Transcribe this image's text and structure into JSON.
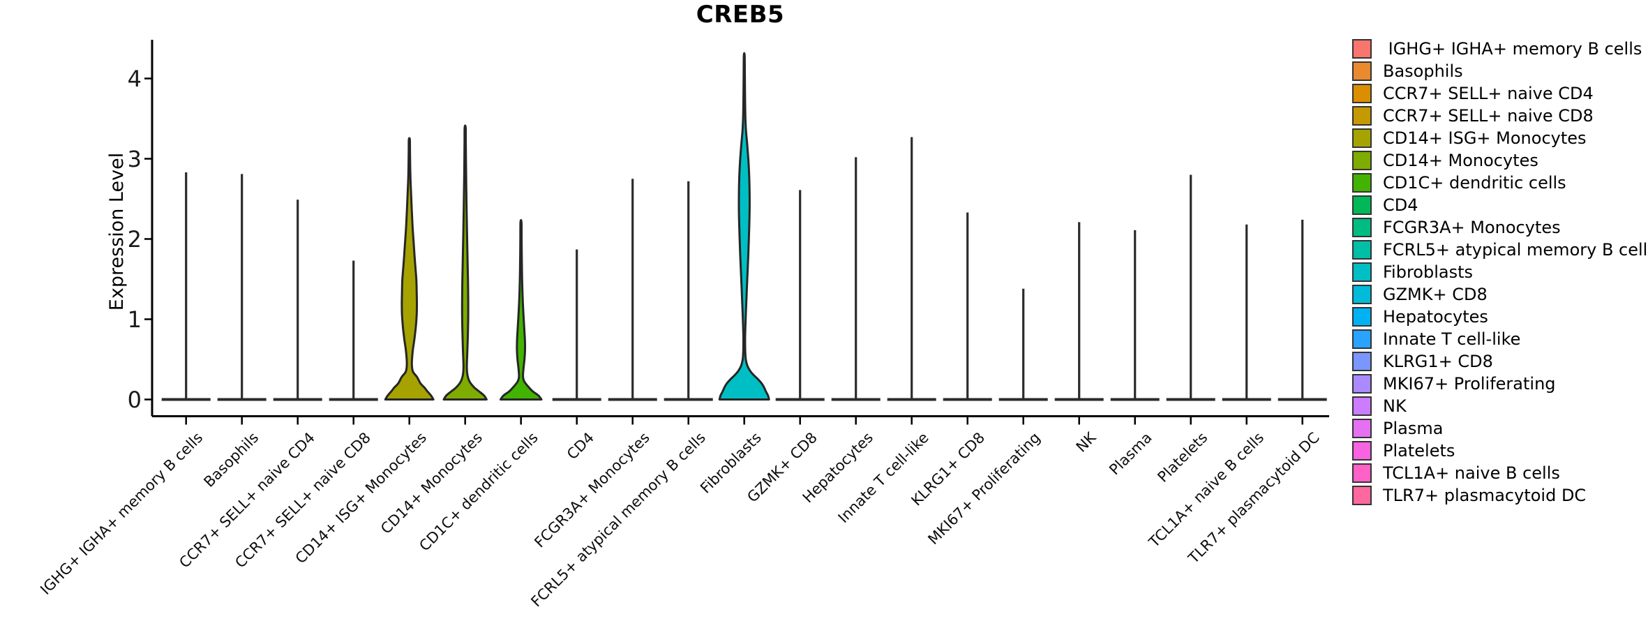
{
  "title": "CREB5",
  "y_axis": {
    "label": "Expression Level",
    "ticks": [
      0,
      1,
      2,
      3,
      4
    ]
  },
  "colors": {
    "axis": "#000000",
    "violin_outline": "#262626",
    "legend_swatch_border": "#333333",
    "background": "#ffffff"
  },
  "legend": {
    "items": [
      {
        "label": " IGHG+ IGHA+ memory B cells",
        "color": "#F8766D"
      },
      {
        "label": "Basophils",
        "color": "#E98A2F"
      },
      {
        "label": "CCR7+ SELL+ naive CD4",
        "color": "#DB8E00"
      },
      {
        "label": "CCR7+ SELL+ naive CD8",
        "color": "#C59900"
      },
      {
        "label": "CD14+ ISG+ Monocytes",
        "color": "#A6A300"
      },
      {
        "label": "CD14+ Monocytes",
        "color": "#7FAC00"
      },
      {
        "label": "CD1C+ dendritic cells",
        "color": "#42B300"
      },
      {
        "label": "CD4",
        "color": "#00B857"
      },
      {
        "label": "FCGR3A+ Monocytes",
        "color": "#00BC82"
      },
      {
        "label": "FCRL5+ atypical memory B cells",
        "color": "#00BFA6"
      },
      {
        "label": "Fibroblasts",
        "color": "#00BFC4"
      },
      {
        "label": "GZMK+ CD8",
        "color": "#00BBDA"
      },
      {
        "label": "Hepatocytes",
        "color": "#00B2F3"
      },
      {
        "label": "Innate T cell-like",
        "color": "#29A3FF"
      },
      {
        "label": "KLRG1+ CD8",
        "color": "#7A96FF"
      },
      {
        "label": "MKI67+ Proliferating",
        "color": "#A98AFF"
      },
      {
        "label": "NK",
        "color": "#CC7CFF"
      },
      {
        "label": "Plasma",
        "color": "#E570F2"
      },
      {
        "label": "Platelets",
        "color": "#F763E0"
      },
      {
        "label": "TCL1A+ naive B cells",
        "color": "#FF61C7"
      },
      {
        "label": "TLR7+ plasmacytoid DC",
        "color": "#FF689E"
      }
    ]
  },
  "chart_data": {
    "type": "violin",
    "title": "CREB5",
    "xlabel": "",
    "ylabel": "Expression Level",
    "ylim": [
      0,
      4.5
    ],
    "y_ticks": [
      0,
      1,
      2,
      3,
      4
    ],
    "legend_position": "right",
    "grid": false,
    "categories": [
      "IGHG+ IGHA+ memory B cells",
      "Basophils",
      "CCR7+ SELL+ naive CD4",
      "CCR7+ SELL+ naive CD8",
      "CD14+ ISG+ Monocytes",
      "CD14+ Monocytes",
      "CD1C+ dendritic cells",
      "CD4",
      "FCGR3A+ Monocytes",
      "FCRL5+ atypical memory B cells",
      "Fibroblasts",
      "GZMK+ CD8",
      "Hepatocytes",
      "Innate T cell-like",
      "KLRG1+ CD8",
      "MKI67+ Proliferating",
      "NK",
      "Plasma",
      "Platelets",
      "TCL1A+ naive B cells",
      "TLR7+ plasmacytoid DC"
    ],
    "series": [
      {
        "name": "IGHG+ IGHA+ memory B cells",
        "color": "#F8766D",
        "max_expression": 2.83,
        "profile": null
      },
      {
        "name": "Basophils",
        "color": "#E98A2F",
        "max_expression": 2.81,
        "profile": null
      },
      {
        "name": "CCR7+ SELL+ naive CD4",
        "color": "#DB8E00",
        "max_expression": 2.49,
        "profile": null
      },
      {
        "name": "CCR7+ SELL+ naive CD8",
        "color": "#C59900",
        "max_expression": 1.73,
        "profile": null
      },
      {
        "name": "CD14+ ISG+ Monocytes",
        "color": "#A6A300",
        "max_expression": 3.24,
        "profile": [
          [
            0,
            34.5
          ],
          [
            0.05,
            31
          ],
          [
            0.1,
            26
          ],
          [
            0.15,
            21.5
          ],
          [
            0.2,
            16
          ],
          [
            0.28,
            11
          ],
          [
            0.35,
            5
          ],
          [
            0.45,
            3.6
          ],
          [
            0.6,
            4.8
          ],
          [
            0.75,
            7.2
          ],
          [
            0.9,
            9.2
          ],
          [
            1.05,
            10.5
          ],
          [
            1.2,
            10.8
          ],
          [
            1.35,
            10.5
          ],
          [
            1.5,
            10
          ],
          [
            1.7,
            8.2
          ],
          [
            1.9,
            6.6
          ],
          [
            2.1,
            5
          ],
          [
            2.3,
            3.8
          ],
          [
            2.5,
            2.8
          ],
          [
            2.7,
            1.8
          ],
          [
            2.9,
            1.2
          ],
          [
            3.1,
            0.9
          ],
          [
            3.24,
            0.7
          ]
        ]
      },
      {
        "name": "CD14+ Monocytes",
        "color": "#7FAC00",
        "max_expression": 3.39,
        "profile": [
          [
            0,
            30.7
          ],
          [
            0.05,
            27
          ],
          [
            0.1,
            20
          ],
          [
            0.15,
            13
          ],
          [
            0.22,
            6.5
          ],
          [
            0.3,
            3.4
          ],
          [
            0.4,
            2.4
          ],
          [
            0.55,
            2.9
          ],
          [
            0.7,
            3.5
          ],
          [
            0.9,
            4.1
          ],
          [
            1.1,
            4.4
          ],
          [
            1.3,
            4.3
          ],
          [
            1.5,
            4
          ],
          [
            1.8,
            3.3
          ],
          [
            2.1,
            2.6
          ],
          [
            2.4,
            2
          ],
          [
            2.7,
            1.5
          ],
          [
            3.0,
            1.1
          ],
          [
            3.2,
            0.9
          ],
          [
            3.39,
            0.7
          ]
        ]
      },
      {
        "name": "CD1C+ dendritic cells",
        "color": "#42B300",
        "max_expression": 2.21,
        "profile": [
          [
            0,
            29.3
          ],
          [
            0.05,
            25
          ],
          [
            0.1,
            17
          ],
          [
            0.15,
            11.5
          ],
          [
            0.22,
            5
          ],
          [
            0.28,
            2.9
          ],
          [
            0.38,
            3.5
          ],
          [
            0.5,
            5
          ],
          [
            0.62,
            5.8
          ],
          [
            0.75,
            5.6
          ],
          [
            0.9,
            4.6
          ],
          [
            1.05,
            3.6
          ],
          [
            1.2,
            2.7
          ],
          [
            1.4,
            1.9
          ],
          [
            1.6,
            1.4
          ],
          [
            1.8,
            1.1
          ],
          [
            2.0,
            0.9
          ],
          [
            2.21,
            0.7
          ]
        ]
      },
      {
        "name": "CD4",
        "color": "#00B857",
        "max_expression": 1.87,
        "profile": null
      },
      {
        "name": "FCGR3A+ Monocytes",
        "color": "#00BC82",
        "max_expression": 2.75,
        "profile": null
      },
      {
        "name": "FCRL5+ atypical memory B cells",
        "color": "#00BFA6",
        "max_expression": 2.72,
        "profile": null
      },
      {
        "name": "Fibroblasts",
        "color": "#00BFC4",
        "max_expression": 4.28,
        "profile": [
          [
            0,
            35.5
          ],
          [
            0.05,
            34
          ],
          [
            0.1,
            31
          ],
          [
            0.15,
            28.5
          ],
          [
            0.2,
            25
          ],
          [
            0.25,
            20
          ],
          [
            0.3,
            14
          ],
          [
            0.35,
            9
          ],
          [
            0.42,
            4.5
          ],
          [
            0.5,
            2.2
          ],
          [
            0.6,
            1.4
          ],
          [
            0.75,
            1.2
          ],
          [
            0.9,
            1.6
          ],
          [
            1.05,
            2.2
          ],
          [
            1.2,
            2.9
          ],
          [
            1.4,
            3.8
          ],
          [
            1.6,
            4.8
          ],
          [
            1.8,
            5.8
          ],
          [
            2.0,
            6.6
          ],
          [
            2.2,
            7.3
          ],
          [
            2.4,
            7.7
          ],
          [
            2.6,
            7.6
          ],
          [
            2.8,
            7
          ],
          [
            3.0,
            5.8
          ],
          [
            3.17,
            4.3
          ],
          [
            3.35,
            2.5
          ],
          [
            3.55,
            1.5
          ],
          [
            3.8,
            1.1
          ],
          [
            4.0,
            0.9
          ],
          [
            4.28,
            0.6
          ]
        ]
      },
      {
        "name": "GZMK+ CD8",
        "color": "#00BBDA",
        "max_expression": 2.61,
        "profile": null
      },
      {
        "name": "Hepatocytes",
        "color": "#00B2F3",
        "max_expression": 3.02,
        "profile": null
      },
      {
        "name": "Innate T cell-like",
        "color": "#29A3FF",
        "max_expression": 3.27,
        "profile": null
      },
      {
        "name": "KLRG1+ CD8",
        "color": "#7A96FF",
        "max_expression": 2.33,
        "profile": null
      },
      {
        "name": "MKI67+ Proliferating",
        "color": "#A98AFF",
        "max_expression": 1.38,
        "profile": null
      },
      {
        "name": "NK",
        "color": "#CC7CFF",
        "max_expression": 2.21,
        "profile": null
      },
      {
        "name": "Plasma",
        "color": "#E570F2",
        "max_expression": 2.11,
        "profile": null
      },
      {
        "name": "Platelets",
        "color": "#F763E0",
        "max_expression": 2.8,
        "profile": null
      },
      {
        "name": "TCL1A+ naive B cells",
        "color": "#FF61C7",
        "max_expression": 2.18,
        "profile": null
      },
      {
        "name": "TLR7+ plasmacytoid DC",
        "color": "#FF689E",
        "max_expression": 2.24,
        "profile": null
      }
    ]
  }
}
